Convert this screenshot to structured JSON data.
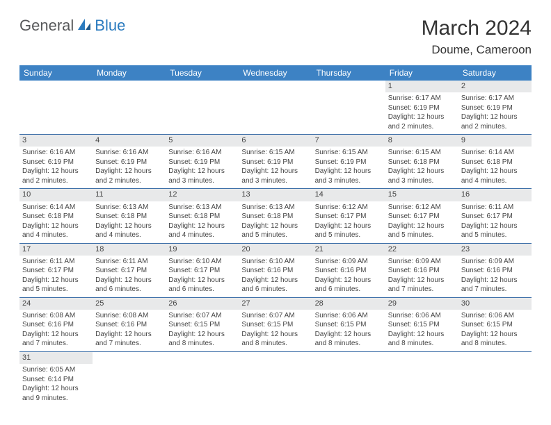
{
  "logo": {
    "general": "General",
    "blue": "Blue"
  },
  "title": "March 2024",
  "location": "Doume, Cameroon",
  "colors": {
    "header_bg": "#3d82c4",
    "header_text": "#ffffff",
    "daynum_bg": "#e8e9ea",
    "row_border": "#3d6fa8",
    "logo_blue": "#2b7bbf",
    "logo_gray": "#58595b"
  },
  "day_headers": [
    "Sunday",
    "Monday",
    "Tuesday",
    "Wednesday",
    "Thursday",
    "Friday",
    "Saturday"
  ],
  "weeks": [
    [
      null,
      null,
      null,
      null,
      null,
      {
        "n": "1",
        "sr": "Sunrise: 6:17 AM",
        "ss": "Sunset: 6:19 PM",
        "dl": "Daylight: 12 hours and 2 minutes."
      },
      {
        "n": "2",
        "sr": "Sunrise: 6:17 AM",
        "ss": "Sunset: 6:19 PM",
        "dl": "Daylight: 12 hours and 2 minutes."
      }
    ],
    [
      {
        "n": "3",
        "sr": "Sunrise: 6:16 AM",
        "ss": "Sunset: 6:19 PM",
        "dl": "Daylight: 12 hours and 2 minutes."
      },
      {
        "n": "4",
        "sr": "Sunrise: 6:16 AM",
        "ss": "Sunset: 6:19 PM",
        "dl": "Daylight: 12 hours and 2 minutes."
      },
      {
        "n": "5",
        "sr": "Sunrise: 6:16 AM",
        "ss": "Sunset: 6:19 PM",
        "dl": "Daylight: 12 hours and 3 minutes."
      },
      {
        "n": "6",
        "sr": "Sunrise: 6:15 AM",
        "ss": "Sunset: 6:19 PM",
        "dl": "Daylight: 12 hours and 3 minutes."
      },
      {
        "n": "7",
        "sr": "Sunrise: 6:15 AM",
        "ss": "Sunset: 6:19 PM",
        "dl": "Daylight: 12 hours and 3 minutes."
      },
      {
        "n": "8",
        "sr": "Sunrise: 6:15 AM",
        "ss": "Sunset: 6:18 PM",
        "dl": "Daylight: 12 hours and 3 minutes."
      },
      {
        "n": "9",
        "sr": "Sunrise: 6:14 AM",
        "ss": "Sunset: 6:18 PM",
        "dl": "Daylight: 12 hours and 4 minutes."
      }
    ],
    [
      {
        "n": "10",
        "sr": "Sunrise: 6:14 AM",
        "ss": "Sunset: 6:18 PM",
        "dl": "Daylight: 12 hours and 4 minutes."
      },
      {
        "n": "11",
        "sr": "Sunrise: 6:13 AM",
        "ss": "Sunset: 6:18 PM",
        "dl": "Daylight: 12 hours and 4 minutes."
      },
      {
        "n": "12",
        "sr": "Sunrise: 6:13 AM",
        "ss": "Sunset: 6:18 PM",
        "dl": "Daylight: 12 hours and 4 minutes."
      },
      {
        "n": "13",
        "sr": "Sunrise: 6:13 AM",
        "ss": "Sunset: 6:18 PM",
        "dl": "Daylight: 12 hours and 5 minutes."
      },
      {
        "n": "14",
        "sr": "Sunrise: 6:12 AM",
        "ss": "Sunset: 6:17 PM",
        "dl": "Daylight: 12 hours and 5 minutes."
      },
      {
        "n": "15",
        "sr": "Sunrise: 6:12 AM",
        "ss": "Sunset: 6:17 PM",
        "dl": "Daylight: 12 hours and 5 minutes."
      },
      {
        "n": "16",
        "sr": "Sunrise: 6:11 AM",
        "ss": "Sunset: 6:17 PM",
        "dl": "Daylight: 12 hours and 5 minutes."
      }
    ],
    [
      {
        "n": "17",
        "sr": "Sunrise: 6:11 AM",
        "ss": "Sunset: 6:17 PM",
        "dl": "Daylight: 12 hours and 5 minutes."
      },
      {
        "n": "18",
        "sr": "Sunrise: 6:11 AM",
        "ss": "Sunset: 6:17 PM",
        "dl": "Daylight: 12 hours and 6 minutes."
      },
      {
        "n": "19",
        "sr": "Sunrise: 6:10 AM",
        "ss": "Sunset: 6:17 PM",
        "dl": "Daylight: 12 hours and 6 minutes."
      },
      {
        "n": "20",
        "sr": "Sunrise: 6:10 AM",
        "ss": "Sunset: 6:16 PM",
        "dl": "Daylight: 12 hours and 6 minutes."
      },
      {
        "n": "21",
        "sr": "Sunrise: 6:09 AM",
        "ss": "Sunset: 6:16 PM",
        "dl": "Daylight: 12 hours and 6 minutes."
      },
      {
        "n": "22",
        "sr": "Sunrise: 6:09 AM",
        "ss": "Sunset: 6:16 PM",
        "dl": "Daylight: 12 hours and 7 minutes."
      },
      {
        "n": "23",
        "sr": "Sunrise: 6:09 AM",
        "ss": "Sunset: 6:16 PM",
        "dl": "Daylight: 12 hours and 7 minutes."
      }
    ],
    [
      {
        "n": "24",
        "sr": "Sunrise: 6:08 AM",
        "ss": "Sunset: 6:16 PM",
        "dl": "Daylight: 12 hours and 7 minutes."
      },
      {
        "n": "25",
        "sr": "Sunrise: 6:08 AM",
        "ss": "Sunset: 6:16 PM",
        "dl": "Daylight: 12 hours and 7 minutes."
      },
      {
        "n": "26",
        "sr": "Sunrise: 6:07 AM",
        "ss": "Sunset: 6:15 PM",
        "dl": "Daylight: 12 hours and 8 minutes."
      },
      {
        "n": "27",
        "sr": "Sunrise: 6:07 AM",
        "ss": "Sunset: 6:15 PM",
        "dl": "Daylight: 12 hours and 8 minutes."
      },
      {
        "n": "28",
        "sr": "Sunrise: 6:06 AM",
        "ss": "Sunset: 6:15 PM",
        "dl": "Daylight: 12 hours and 8 minutes."
      },
      {
        "n": "29",
        "sr": "Sunrise: 6:06 AM",
        "ss": "Sunset: 6:15 PM",
        "dl": "Daylight: 12 hours and 8 minutes."
      },
      {
        "n": "30",
        "sr": "Sunrise: 6:06 AM",
        "ss": "Sunset: 6:15 PM",
        "dl": "Daylight: 12 hours and 8 minutes."
      }
    ],
    [
      {
        "n": "31",
        "sr": "Sunrise: 6:05 AM",
        "ss": "Sunset: 6:14 PM",
        "dl": "Daylight: 12 hours and 9 minutes."
      },
      null,
      null,
      null,
      null,
      null,
      null
    ]
  ]
}
